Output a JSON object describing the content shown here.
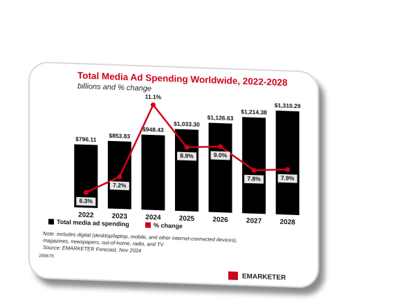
{
  "chart_data": {
    "type": "bar-line",
    "title": "Total Media Ad Spending Worldwide, 2022-2028",
    "subtitle": "billions and % change",
    "categories": [
      "2022",
      "2023",
      "2024",
      "2025",
      "2026",
      "2027",
      "2028"
    ],
    "series": [
      {
        "name": "Total media ad spending",
        "color": "#000000",
        "values": [
          796.11,
          853.83,
          948.43,
          1033.3,
          1126.63,
          1214.38,
          1310.29
        ],
        "value_labels": [
          "$796.11",
          "$853.83",
          "$948.43",
          "$1,033.30",
          "$1,126.63",
          "$1,214.38",
          "$1,310.29"
        ]
      },
      {
        "name": "% change",
        "color": "#d0021b",
        "axis": "y2",
        "values": [
          6.3,
          7.2,
          11.1,
          8.9,
          9.0,
          7.8,
          7.9
        ],
        "value_labels": [
          "6.3%",
          "7.2%",
          "11.1%",
          "8.9%",
          "9.0%",
          "7.8%",
          "7.9%"
        ]
      }
    ],
    "note": [
      "Note: includes digital (desktop/laptop, mobile, and other internet-connected devices),",
      "magazines, newspapers, out-of-home, radio, and TV"
    ],
    "source": "Source: EMARKETER Forecast, Nov 2024",
    "chart_id": "288676",
    "brand": "EMARKETER"
  }
}
